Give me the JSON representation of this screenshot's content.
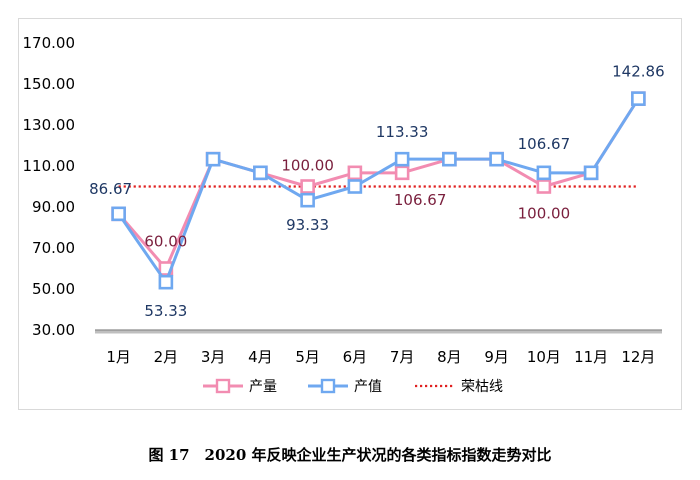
{
  "chart_data": {
    "type": "line",
    "categories": [
      "1月",
      "2月",
      "3月",
      "4月",
      "5月",
      "6月",
      "7月",
      "8月",
      "9月",
      "10月",
      "11月",
      "12月"
    ],
    "series": [
      {
        "name": "产量",
        "color": "#f28cb1",
        "values": [
          86.67,
          60.0,
          113.33,
          106.67,
          100.0,
          106.67,
          106.67,
          113.33,
          113.33,
          100.0,
          106.67,
          142.86
        ],
        "labeled_points": [
          {
            "index": 1,
            "text": "60.00"
          },
          {
            "index": 4,
            "text": "100.00"
          },
          {
            "index": 6,
            "text": "106.67"
          },
          {
            "index": 9,
            "text": "100.00"
          }
        ],
        "label_color": "#7a1f3d"
      },
      {
        "name": "产值",
        "color": "#6fa8f0",
        "values": [
          86.67,
          53.33,
          113.33,
          106.67,
          93.33,
          100.0,
          113.33,
          113.33,
          113.33,
          106.67,
          106.67,
          142.86
        ],
        "labeled_points": [
          {
            "index": 0,
            "text": "86.67"
          },
          {
            "index": 1,
            "text": "53.33"
          },
          {
            "index": 4,
            "text": "93.33"
          },
          {
            "index": 6,
            "text": "113.33"
          },
          {
            "index": 9,
            "text": "106.67"
          },
          {
            "index": 11,
            "text": "142.86"
          }
        ],
        "label_color": "#1f3864"
      },
      {
        "name": "荣枯线",
        "color": "#e02020",
        "values": [
          100,
          100,
          100,
          100,
          100,
          100,
          100,
          100,
          100,
          100,
          100,
          100
        ]
      }
    ],
    "y_ticks": [
      "170.00",
      "150.00",
      "130.00",
      "110.00",
      "90.00",
      "70.00",
      "50.00",
      "30.00"
    ],
    "ylim": [
      30,
      170
    ],
    "legend_position": "bottom",
    "grid": false
  },
  "caption": "图 17　2020 年反映企业生产状况的各类指标指数走势对比"
}
